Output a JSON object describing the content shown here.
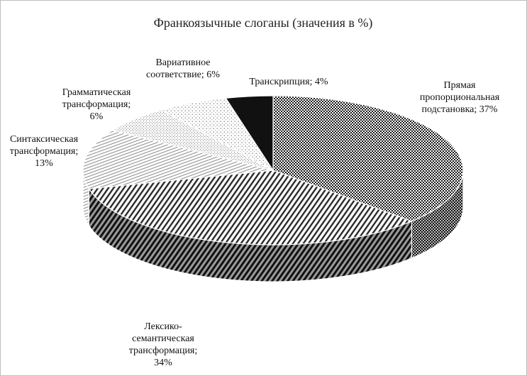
{
  "chart_data": {
    "type": "pie",
    "title": "Франкоязычные слоганы (значения в %)",
    "slices": [
      {
        "label_lines": [
          "Прямая",
          "пропорциональная",
          "подстановка; 37%"
        ],
        "category": "Прямая пропорциональная подстановка",
        "value": 37,
        "pattern": "checker",
        "color": "#333333"
      },
      {
        "label_lines": [
          "Лексико-",
          "семантическая",
          "трансформация;",
          "34%"
        ],
        "category": "Лексико-семантическая трансформация",
        "value": 34,
        "pattern": "diag",
        "color": "#444444"
      },
      {
        "label_lines": [
          "Синтаксическая",
          "трансформация;",
          "13%"
        ],
        "category": "Синтаксическая трансформация",
        "value": 13,
        "pattern": "hlines",
        "color": "#b0b0b0"
      },
      {
        "label_lines": [
          "Грамматическая",
          "трансформация;",
          "6%"
        ],
        "category": "Грамматическая трансформация",
        "value": 6,
        "pattern": "light",
        "color": "#c8c8c8"
      },
      {
        "label_lines": [
          "Вариативное",
          "соответствие; 6%"
        ],
        "category": "Вариативное соответствие",
        "value": 6,
        "pattern": "dots",
        "color": "#d8d8d8"
      },
      {
        "label_lines": [
          "Транскрипция; 4%"
        ],
        "category": "Транскрипция",
        "value": 4,
        "pattern": "solid",
        "color": "#111111"
      }
    ]
  }
}
